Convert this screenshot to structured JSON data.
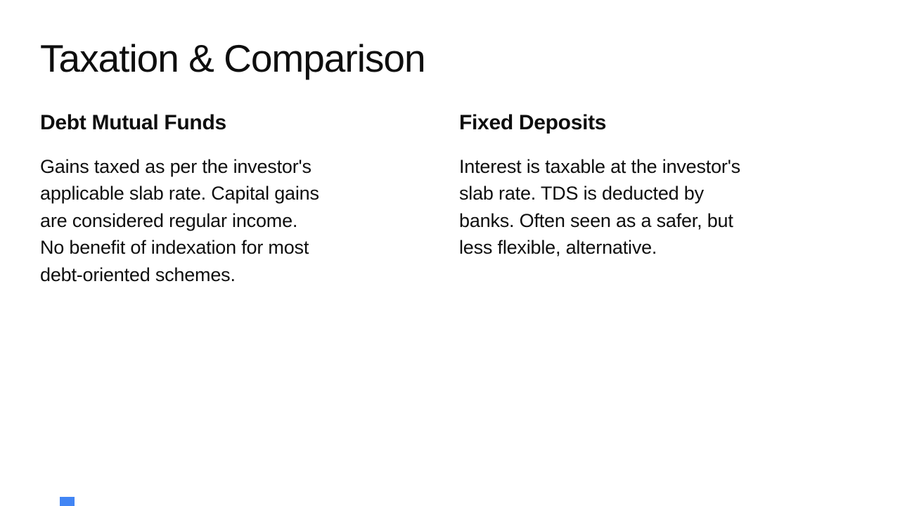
{
  "slide": {
    "title": "Taxation & Comparison",
    "columns": [
      {
        "heading": "Debt Mutual Funds",
        "body": "Gains taxed as per the investor's\napplicable slab rate. Capital gains\nare considered regular income.\nNo benefit of indexation for most\ndebt-oriented schemes."
      },
      {
        "heading": "Fixed Deposits",
        "body": "Interest is taxable at the investor's\nslab rate. TDS is deducted by\nbanks. Often seen as a safer, but\nless flexible, alternative."
      }
    ],
    "colors": {
      "background": "#ffffff",
      "text": "#0e0e0e",
      "accent": "#4285f4"
    }
  }
}
